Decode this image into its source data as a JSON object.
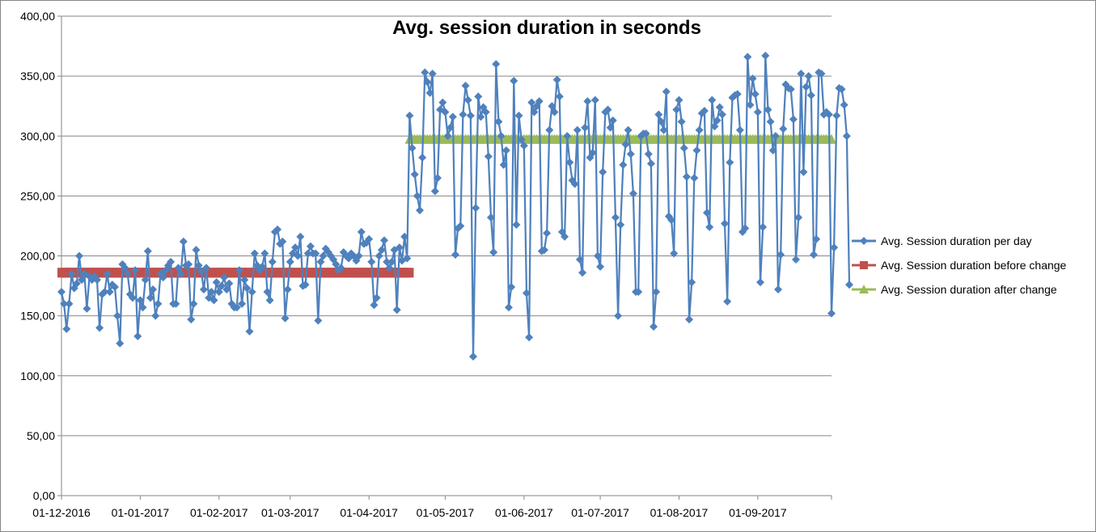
{
  "chart_data": {
    "type": "line",
    "title": "Avg. session duration in seconds",
    "xlabel": "",
    "ylabel": "",
    "ylim": [
      0,
      400
    ],
    "y_ticks": [
      "0,00",
      "50,00",
      "100,00",
      "150,00",
      "200,00",
      "250,00",
      "300,00",
      "350,00",
      "400,00"
    ],
    "y_tick_values": [
      0,
      50,
      100,
      150,
      200,
      250,
      300,
      350,
      400
    ],
    "x_range": [
      "2016-12-01",
      "2017-09-30"
    ],
    "x_ticks": [
      {
        "label": "01-12-2016",
        "date": "2016-12-01"
      },
      {
        "label": "01-01-2017",
        "date": "2017-01-01"
      },
      {
        "label": "01-02-2017",
        "date": "2017-02-01"
      },
      {
        "label": "01-03-2017",
        "date": "2017-03-01"
      },
      {
        "label": "01-04-2017",
        "date": "2017-04-01"
      },
      {
        "label": "01-05-2017",
        "date": "2017-05-01"
      },
      {
        "label": "01-06-2017",
        "date": "2017-06-01"
      },
      {
        "label": "01-07-2017",
        "date": "2017-07-01"
      },
      {
        "label": "01-08-2017",
        "date": "2017-08-01"
      },
      {
        "label": "01-09-2017",
        "date": "2017-09-01"
      }
    ],
    "grid": "horizontal",
    "legend_position": "right",
    "series": [
      {
        "name": "Avg. Session duration per day",
        "color": "#4F81BD",
        "marker": "diamond",
        "start_date": "2016-12-01",
        "values": [
          170,
          160,
          139,
          160,
          185,
          173,
          177,
          200,
          180,
          185,
          156,
          183,
          180,
          183,
          180,
          140,
          168,
          170,
          185,
          170,
          176,
          174,
          150,
          127,
          193,
          190,
          185,
          168,
          165,
          188,
          133,
          163,
          157,
          180,
          204,
          165,
          172,
          150,
          160,
          185,
          182,
          188,
          192,
          195,
          160,
          160,
          190,
          185,
          212,
          192,
          193,
          147,
          160,
          205,
          192,
          187,
          172,
          190,
          165,
          170,
          163,
          178,
          170,
          175,
          182,
          172,
          177,
          160,
          157,
          157,
          188,
          160,
          180,
          173,
          137,
          170,
          202,
          192,
          188,
          191,
          202,
          170,
          163,
          195,
          220,
          222,
          210,
          212,
          148,
          172,
          195,
          202,
          207,
          200,
          216,
          175,
          176,
          202,
          208,
          202,
          202,
          146,
          195,
          200,
          206,
          203,
          200,
          197,
          193,
          188,
          190,
          203,
          200,
          198,
          202,
          200,
          196,
          200,
          220,
          210,
          211,
          214,
          195,
          159,
          165,
          200,
          205,
          213,
          195,
          190,
          195,
          205,
          155,
          207,
          196,
          216,
          198,
          317,
          290,
          268,
          250,
          238,
          282,
          353,
          345,
          336,
          352,
          254,
          265,
          322,
          328,
          320,
          300,
          307,
          316,
          201,
          223,
          225,
          318,
          342,
          330,
          317,
          116,
          240,
          333,
          316,
          324,
          320,
          283,
          232,
          203,
          360,
          312,
          300,
          276,
          288,
          157,
          174,
          346,
          226,
          317,
          297,
          292,
          169,
          132,
          328,
          320,
          325,
          329,
          204,
          205,
          219,
          305,
          325,
          320,
          347,
          333,
          220,
          216,
          300,
          278,
          263,
          260,
          305,
          197,
          186,
          307,
          329,
          282,
          286,
          330,
          200,
          191,
          270,
          320,
          322,
          307,
          313,
          232,
          150,
          226,
          276,
          293,
          305,
          285,
          252,
          170,
          170,
          300,
          302,
          302,
          285,
          277,
          141,
          170,
          318,
          312,
          305,
          337,
          233,
          230,
          202,
          322,
          330,
          312,
          290,
          266,
          147,
          178,
          265,
          288,
          305,
          319,
          321,
          236,
          224,
          330,
          308,
          313,
          324,
          318,
          227,
          162,
          278,
          332,
          334,
          335,
          305,
          220,
          223,
          366,
          326,
          348,
          335,
          320,
          178,
          224,
          367,
          322,
          312,
          288,
          300,
          172,
          201,
          306,
          343,
          340,
          339,
          314,
          197,
          232,
          352,
          270,
          341,
          350,
          334,
          201,
          214,
          353,
          352,
          318,
          320,
          318,
          152,
          207,
          317,
          340,
          339,
          326,
          300,
          176
        ]
      },
      {
        "name": "Avg. Session duration before change",
        "color": "#C0504D",
        "marker": "square",
        "from": "2016-12-01",
        "to": "2017-04-17",
        "value": 186
      },
      {
        "name": "Avg. Session duration after change",
        "color": "#9BBB59",
        "marker": "triangle",
        "from": "2017-04-17",
        "to": "2017-09-30",
        "value": 297
      }
    ]
  }
}
